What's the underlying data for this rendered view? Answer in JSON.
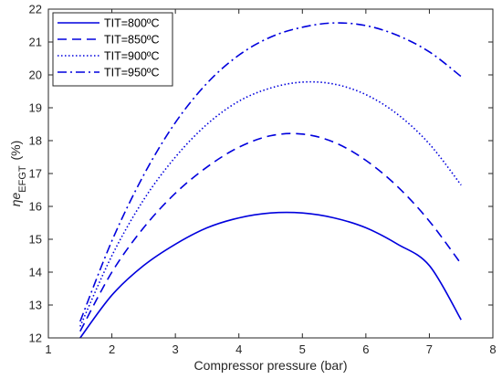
{
  "chart_data": {
    "type": "line",
    "title": "",
    "xlabel": "Compressor pressure (bar)",
    "ylabel": {
      "prefix": "ηe",
      "sub": "EFGT",
      "suffix": " (%)"
    },
    "xlim": [
      1,
      8
    ],
    "ylim": [
      12,
      22
    ],
    "xticks": [
      1,
      2,
      3,
      4,
      5,
      6,
      7,
      8
    ],
    "yticks": [
      12,
      13,
      14,
      15,
      16,
      17,
      18,
      19,
      20,
      21,
      22
    ],
    "grid": false,
    "legend_position": "top-left",
    "x": [
      1.5,
      2.0,
      2.5,
      3.0,
      3.5,
      4.0,
      4.5,
      5.0,
      5.5,
      6.0,
      6.5,
      7.0,
      7.5
    ],
    "series": [
      {
        "name": "TIT=800ºC",
        "style": "solid",
        "color": "#0000dd",
        "values": [
          12.0,
          13.3,
          14.2,
          14.85,
          15.35,
          15.65,
          15.8,
          15.8,
          15.65,
          15.35,
          14.85,
          14.2,
          12.55
        ]
      },
      {
        "name": "TIT=850ºC",
        "style": "dashed",
        "color": "#0000dd",
        "values": [
          12.2,
          14.0,
          15.35,
          16.4,
          17.2,
          17.8,
          18.15,
          18.2,
          17.95,
          17.4,
          16.6,
          15.55,
          14.25
        ]
      },
      {
        "name": "TIT=900ºC",
        "style": "dotted",
        "color": "#0000dd",
        "values": [
          12.35,
          14.5,
          16.2,
          17.5,
          18.5,
          19.2,
          19.6,
          19.78,
          19.72,
          19.4,
          18.8,
          17.9,
          16.65
        ]
      },
      {
        "name": "TIT=950ºC",
        "style": "dashdot",
        "color": "#0000dd",
        "values": [
          12.5,
          14.95,
          16.95,
          18.55,
          19.75,
          20.6,
          21.15,
          21.45,
          21.58,
          21.5,
          21.2,
          20.7,
          19.95
        ]
      }
    ]
  }
}
